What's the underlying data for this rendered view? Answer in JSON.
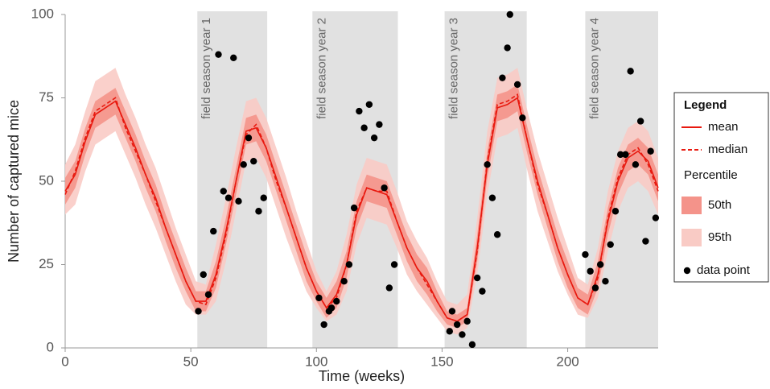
{
  "chart_data": {
    "type": "line",
    "x_label": "Time (weeks)",
    "y_label": "Number of captured mice",
    "xlim": [
      0,
      236
    ],
    "ylim": [
      0,
      100
    ],
    "xticks": [
      0,
      50,
      100,
      150,
      200
    ],
    "yticks": [
      0,
      25,
      50,
      75,
      100
    ],
    "grid": false,
    "x": [
      0,
      4,
      8,
      12,
      16,
      20,
      24,
      28,
      32,
      36,
      40,
      44,
      48,
      52,
      56,
      60,
      64,
      68,
      72,
      76,
      80,
      84,
      88,
      92,
      96,
      100,
      104,
      108,
      112,
      116,
      120,
      124,
      128,
      132,
      136,
      140,
      144,
      148,
      152,
      156,
      160,
      164,
      168,
      172,
      176,
      180,
      184,
      188,
      192,
      196,
      200,
      204,
      208,
      212,
      216,
      220,
      224,
      228,
      232,
      236
    ],
    "series": [
      {
        "name": "mean",
        "color": "#e8190f",
        "dash": false,
        "values": [
          47,
          52,
          62,
          70,
          72,
          74,
          67,
          60,
          52,
          45,
          36,
          28,
          20,
          14,
          14,
          22,
          35,
          50,
          65,
          66,
          60,
          51,
          42,
          33,
          24,
          17,
          12,
          16,
          25,
          40,
          48,
          47,
          46,
          38,
          30,
          24,
          20,
          14,
          9,
          8,
          10,
          30,
          55,
          72,
          73,
          75,
          62,
          50,
          40,
          30,
          22,
          15,
          13,
          22,
          38,
          50,
          57,
          59,
          56,
          48
        ]
      },
      {
        "name": "median",
        "color": "#e8190f",
        "dash": true,
        "values": [
          46,
          53,
          63,
          71,
          73,
          75,
          66,
          59,
          52,
          44,
          36,
          28,
          20,
          14,
          13,
          21,
          34,
          50,
          64,
          67,
          60,
          50,
          42,
          33,
          24,
          17,
          12,
          15,
          25,
          41,
          48,
          47,
          47,
          38,
          30,
          24,
          19,
          14,
          9,
          8,
          10,
          29,
          56,
          73,
          74,
          76,
          62,
          49,
          40,
          30,
          22,
          15,
          13,
          21,
          39,
          51,
          58,
          60,
          55,
          47
        ]
      }
    ],
    "bands_title": "Percentile",
    "bands": [
      {
        "name": "50th",
        "color": "#f4938a",
        "lower": [
          43,
          48,
          58,
          66,
          68,
          70,
          63,
          56,
          48,
          41,
          32,
          24,
          17,
          11,
          11,
          18,
          31,
          46,
          61,
          62,
          56,
          47,
          38,
          29,
          20,
          14,
          9,
          12,
          21,
          36,
          44,
          43,
          42,
          34,
          26,
          20,
          16,
          11,
          7,
          6,
          8,
          26,
          51,
          68,
          69,
          71,
          58,
          46,
          36,
          26,
          18,
          12,
          10,
          18,
          34,
          46,
          53,
          55,
          52,
          44
        ],
        "upper": [
          51,
          56,
          66,
          74,
          76,
          78,
          71,
          64,
          56,
          49,
          40,
          32,
          24,
          17,
          17,
          26,
          39,
          54,
          69,
          70,
          64,
          55,
          46,
          37,
          28,
          20,
          15,
          20,
          29,
          44,
          52,
          51,
          50,
          42,
          34,
          28,
          24,
          17,
          11,
          10,
          12,
          34,
          59,
          76,
          77,
          79,
          66,
          54,
          44,
          34,
          26,
          18,
          16,
          26,
          42,
          54,
          61,
          63,
          60,
          52
        ]
      },
      {
        "name": "95th",
        "color": "#f9cbc5",
        "lower": [
          40,
          43,
          53,
          61,
          63,
          65,
          58,
          51,
          43,
          36,
          28,
          20,
          13,
          10,
          10,
          14,
          26,
          41,
          56,
          57,
          51,
          42,
          33,
          25,
          17,
          12,
          8,
          10,
          17,
          31,
          39,
          38,
          37,
          30,
          22,
          17,
          13,
          9,
          5,
          4,
          6,
          22,
          46,
          63,
          64,
          66,
          53,
          41,
          32,
          23,
          16,
          10,
          9,
          15,
          29,
          41,
          48,
          50,
          47,
          40
        ],
        "upper": [
          55,
          61,
          71,
          80,
          82,
          84,
          76,
          69,
          61,
          54,
          45,
          36,
          28,
          20,
          19,
          31,
          45,
          60,
          74,
          75,
          69,
          60,
          51,
          41,
          32,
          23,
          17,
          23,
          34,
          49,
          57,
          56,
          55,
          47,
          38,
          32,
          27,
          20,
          14,
          13,
          16,
          39,
          65,
          81,
          82,
          84,
          71,
          59,
          49,
          39,
          30,
          21,
          19,
          30,
          47,
          59,
          66,
          68,
          65,
          57
        ]
      }
    ],
    "points": {
      "name": "data point",
      "color": "#000000",
      "x": [
        53,
        55,
        57,
        59,
        61,
        63,
        65,
        67,
        69,
        71,
        73,
        75,
        77,
        79,
        101,
        103,
        105,
        106,
        108,
        111,
        113,
        115,
        117,
        119,
        121,
        123,
        125,
        127,
        129,
        131,
        153,
        154,
        156,
        158,
        160,
        162,
        164,
        166,
        168,
        170,
        172,
        174,
        176,
        177,
        180,
        182,
        207,
        209,
        211,
        213,
        215,
        217,
        219,
        221,
        223,
        225,
        227,
        229,
        231,
        233,
        235
      ],
      "y": [
        11,
        22,
        16,
        35,
        88,
        47,
        45,
        87,
        44,
        55,
        63,
        56,
        41,
        45,
        15,
        7,
        11,
        12,
        14,
        20,
        25,
        42,
        71,
        66,
        73,
        63,
        67,
        48,
        18,
        25,
        5,
        11,
        7,
        4,
        8,
        1,
        21,
        17,
        55,
        45,
        34,
        81,
        90,
        100,
        79,
        69,
        28,
        23,
        18,
        25,
        20,
        31,
        41,
        58,
        58,
        83,
        55,
        68,
        32,
        59,
        39
      ]
    },
    "regions": [
      {
        "label": "field season year 1",
        "start": 52.6,
        "end": 80.4
      },
      {
        "label": "field season year 2",
        "start": 98.4,
        "end": 132.4
      },
      {
        "label": "field season year 3",
        "start": 151,
        "end": 183.7
      },
      {
        "label": "field season year 4",
        "start": 207,
        "end": 236
      }
    ],
    "region_color": "#e1e1e1",
    "legend": {
      "title": "Legend",
      "position": "right"
    }
  }
}
